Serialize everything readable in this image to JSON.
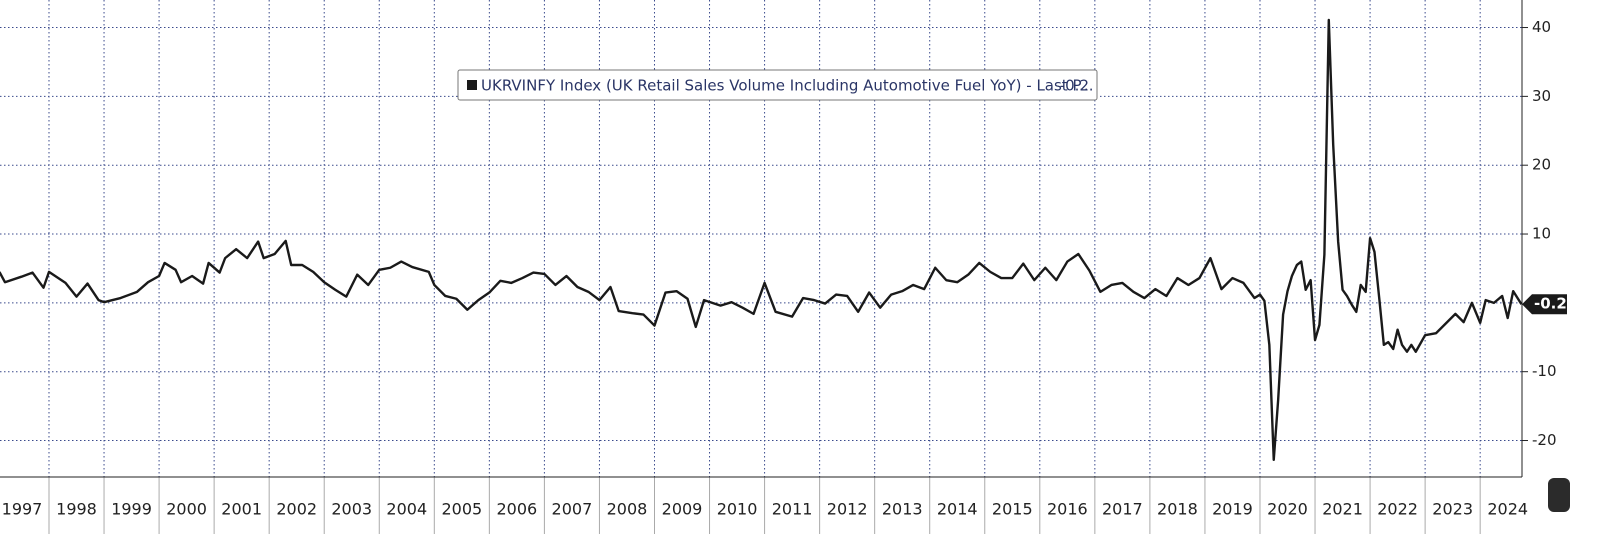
{
  "chart_data": {
    "type": "line",
    "xlim": [
      1997.11,
      2024.76
    ],
    "ylim": [
      -25.3,
      44
    ],
    "xticks": [
      1997,
      1998,
      1999,
      2000,
      2001,
      2002,
      2003,
      2004,
      2005,
      2006,
      2007,
      2008,
      2009,
      2010,
      2011,
      2012,
      2013,
      2014,
      2015,
      2016,
      2017,
      2018,
      2019,
      2020,
      2021,
      2022,
      2023,
      2024
    ],
    "yticks": [
      -20,
      -10,
      10,
      20,
      30,
      40
    ],
    "grid": true,
    "x": [
      1997.1,
      1997.2,
      1997.5,
      1997.7,
      1997.9,
      1998.0,
      1998.3,
      1998.5,
      1998.7,
      1998.9,
      1999.0,
      1999.3,
      1999.6,
      1999.8,
      2000.0,
      2000.1,
      2000.3,
      2000.4,
      2000.6,
      2000.8,
      2000.9,
      2001.1,
      2001.2,
      2001.4,
      2001.6,
      2001.8,
      2001.9,
      2002.1,
      2002.3,
      2002.4,
      2002.6,
      2002.8,
      2003.0,
      2003.2,
      2003.4,
      2003.6,
      2003.8,
      2004.0,
      2004.2,
      2004.4,
      2004.6,
      2004.9,
      2005.0,
      2005.2,
      2005.4,
      2005.6,
      2005.8,
      2006.0,
      2006.2,
      2006.4,
      2006.6,
      2006.8,
      2007.0,
      2007.2,
      2007.4,
      2007.6,
      2007.8,
      2008.0,
      2008.2,
      2008.35,
      2008.6,
      2008.8,
      2009.0,
      2009.2,
      2009.4,
      2009.6,
      2009.75,
      2009.9,
      2010.2,
      2010.4,
      2010.6,
      2010.8,
      2011.0,
      2011.2,
      2011.5,
      2011.7,
      2011.9,
      2012.1,
      2012.3,
      2012.5,
      2012.7,
      2012.9,
      2013.1,
      2013.3,
      2013.5,
      2013.7,
      2013.9,
      2014.1,
      2014.3,
      2014.5,
      2014.7,
      2014.9,
      2015.1,
      2015.3,
      2015.5,
      2015.7,
      2015.9,
      2016.1,
      2016.3,
      2016.5,
      2016.7,
      2016.9,
      2017.1,
      2017.3,
      2017.5,
      2017.7,
      2017.9,
      2018.1,
      2018.3,
      2018.5,
      2018.7,
      2018.9,
      2019.1,
      2019.3,
      2019.5,
      2019.7,
      2019.9,
      2020.0,
      2020.08,
      2020.17,
      2020.25,
      2020.33,
      2020.42,
      2020.5,
      2020.58,
      2020.67,
      2020.75,
      2020.83,
      2020.92,
      2021.0,
      2021.08,
      2021.17,
      2021.25,
      2021.33,
      2021.42,
      2021.5,
      2021.58,
      2021.67,
      2021.75,
      2021.83,
      2021.92,
      2022.0,
      2022.08,
      2022.17,
      2022.25,
      2022.33,
      2022.42,
      2022.5,
      2022.58,
      2022.67,
      2022.75,
      2022.83,
      2023.0,
      2023.2,
      2023.4,
      2023.55,
      2023.7,
      2023.85,
      2024.0,
      2024.1,
      2024.25,
      2024.4,
      2024.5,
      2024.6,
      2024.75
    ],
    "series": [
      {
        "name": "UKRVINFY Index (UK Retail Sales Volume Including Automotive Fuel YoY) - Last P...",
        "color": "#1a1a1a",
        "values": [
          4.5,
          3,
          3.8,
          4.4,
          2.2,
          4.5,
          2.9,
          0.9,
          2.8,
          0.4,
          0.1,
          0.7,
          1.6,
          3,
          3.9,
          5.8,
          4.8,
          3,
          3.9,
          2.8,
          5.8,
          4.4,
          6.5,
          7.8,
          6.5,
          8.9,
          6.5,
          7.1,
          9,
          5.5,
          5.5,
          4.5,
          3,
          1.9,
          0.9,
          4.1,
          2.6,
          4.8,
          5.1,
          6,
          5.2,
          4.5,
          2.6,
          1,
          0.6,
          -1,
          0.4,
          1.5,
          3.2,
          2.9,
          3.6,
          4.4,
          4.2,
          2.6,
          3.9,
          2.3,
          1.6,
          0.4,
          2.3,
          -1.2,
          -1.5,
          -1.7,
          -3.3,
          1.5,
          1.7,
          0.6,
          -3.5,
          0.4,
          -0.4,
          0.1,
          -0.7,
          -1.6,
          2.9,
          -1.3,
          -2,
          0.7,
          0.4,
          -0.1,
          1.2,
          1,
          -1.3,
          1.5,
          -0.7,
          1.2,
          1.7,
          2.6,
          2,
          5.1,
          3.3,
          3,
          4.1,
          5.8,
          4.5,
          3.6,
          3.6,
          5.7,
          3.3,
          5.1,
          3.3,
          6,
          7.1,
          4.7,
          1.6,
          2.6,
          2.9,
          1.6,
          0.7,
          2,
          1,
          3.6,
          2.6,
          3.6,
          6.5,
          2,
          3.6,
          2.9,
          0.7,
          1.2,
          0.3,
          -6.1,
          -22.8,
          -14.1,
          -1.7,
          1.7,
          3.9,
          5.5,
          6,
          1.9,
          3.3,
          -5.4,
          -3.2,
          7,
          41.1,
          23,
          8.9,
          1.9,
          1,
          -0.3,
          -1.3,
          2.6,
          1.6,
          9.4,
          7.4,
          0.4,
          -6.1,
          -5.7,
          -6.7,
          -3.9,
          -6.1,
          -7.1,
          -6.1,
          -7.1,
          -4.7,
          -4.4,
          -2.8,
          -1.6,
          -2.8,
          0,
          -2.9,
          0.4,
          0,
          1,
          -2.2,
          1.7,
          -0.2
        ]
      }
    ]
  }
}
